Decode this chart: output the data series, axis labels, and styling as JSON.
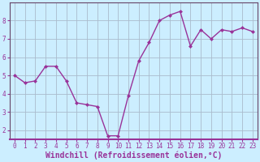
{
  "x_values": [
    0,
    1,
    2,
    3,
    4,
    5,
    6,
    7,
    8,
    9,
    10,
    11,
    12,
    13,
    14,
    15,
    16,
    17,
    18,
    19,
    20,
    21,
    22,
    23
  ],
  "y_values": [
    5.0,
    4.6,
    4.7,
    5.5,
    5.5,
    4.7,
    3.5,
    3.4,
    3.3,
    1.7,
    1.7,
    3.9,
    5.8,
    6.8,
    8.0,
    8.3,
    8.5,
    6.6,
    7.5,
    7.0,
    7.5,
    7.4,
    7.6,
    7.4
  ],
  "line_color": "#993399",
  "marker_color": "#993399",
  "bg_color": "#cceeff",
  "plot_bg_color": "#cceeff",
  "grid_color": "#aabbcc",
  "spine_color": "#664466",
  "xlabel": "Windchill (Refroidissement éolien,°C)",
  "ylim": [
    1.5,
    9.0
  ],
  "xlim": [
    -0.5,
    23.5
  ],
  "yticks": [
    2,
    3,
    4,
    5,
    6,
    7,
    8
  ],
  "xticks": [
    0,
    1,
    2,
    3,
    4,
    5,
    6,
    7,
    8,
    9,
    10,
    11,
    12,
    13,
    14,
    15,
    16,
    17,
    18,
    19,
    20,
    21,
    22,
    23
  ],
  "tick_fontsize": 5.5,
  "xlabel_fontsize": 7.0,
  "marker_size": 2.5,
  "line_width": 1.0
}
